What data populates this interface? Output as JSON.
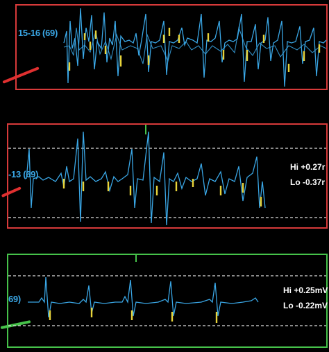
{
  "channels": [
    {
      "label": "15-16 (69)",
      "border_color": "#d83a3a",
      "pointer_color": "#e03030",
      "trace_color": "#3aa7e6",
      "marker_color": "#e8d43a",
      "readout": null
    },
    {
      "label": "-13 (69)",
      "border_color": "#d83a3a",
      "pointer_color": "#e03030",
      "trace_color": "#3aa7e6",
      "marker_color": "#e8d43a",
      "readout": {
        "hi": "Hi +0.27r",
        "lo": "Lo -0.37r"
      }
    },
    {
      "label": "69)",
      "border_color": "#46c24a",
      "pointer_color": "#46c24a",
      "trace_color": "#3aa7e6",
      "marker_color": "#e8d43a",
      "readout": {
        "hi": "Hi +0.25mV",
        "lo": "Lo -0.22mV"
      }
    }
  ],
  "colors": {
    "background": "#000000",
    "threshold_line": "#dddddd",
    "sync_tick": "#46c24a"
  }
}
